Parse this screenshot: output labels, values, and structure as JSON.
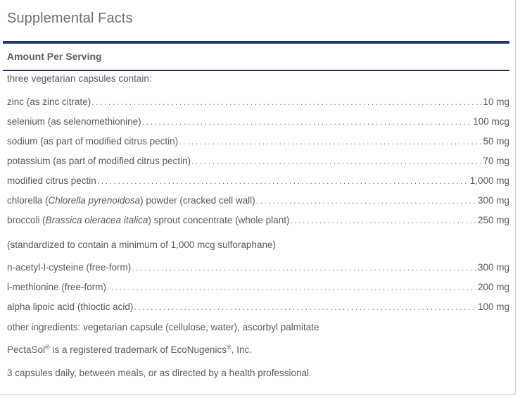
{
  "title": "Supplemental Facts",
  "amount_header": "Amount Per Serving",
  "serving_note": "three vegetarian capsules contain:",
  "ingredients": [
    {
      "name": "zinc (as zinc citrate)",
      "amount": "10 mg"
    },
    {
      "name": "selenium (as selenomethionine)",
      "amount": "100 mcg"
    },
    {
      "name": "sodium (as part of modified citrus pectin)",
      "amount": "50 mg"
    },
    {
      "name": "potassium (as part of modified citrus pectin)",
      "amount": "70 mg"
    },
    {
      "name": "modified citrus pectin",
      "amount": "1,000 mg"
    },
    {
      "name_pre": "chlorella (",
      "name_italic": "Chlorella pyrenoidosa",
      "name_post": ") powder (cracked cell wall)",
      "amount": "300 mg"
    },
    {
      "name_pre": "broccoli (",
      "name_italic": "Brassica oleracea italica",
      "name_post": ") sprout concentrate (whole plant)",
      "amount": "250 mg"
    },
    {
      "name": "n-acetyl-l-cysteine (free-form)",
      "amount": "300 mg"
    },
    {
      "name": "l-methionine (free-form)",
      "amount": "200 mg"
    },
    {
      "name": "alpha lipoic acid (thioctic acid)",
      "amount": "100 mg"
    }
  ],
  "standardized_note": "(standardized to contain a minimum of 1,000 mcg sulforaphane)",
  "other_ingredients": "other ingredients: vegetarian capsule (cellulose, water), ascorbyl palmitate",
  "trademark": {
    "pre": "PectaSol",
    "reg1": "®",
    "mid": " is a registered trademark of EcoNugenics",
    "reg2": "®",
    "post": ", Inc."
  },
  "directions": "3 capsules daily, between meals, or as directed by a health professional."
}
